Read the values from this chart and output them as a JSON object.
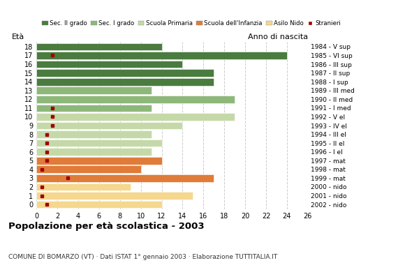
{
  "ages": [
    18,
    17,
    16,
    15,
    14,
    13,
    12,
    11,
    10,
    9,
    8,
    7,
    6,
    5,
    4,
    3,
    2,
    1,
    0
  ],
  "anno_nascita": [
    "1984 - V sup",
    "1985 - VI sup",
    "1986 - III sup",
    "1987 - II sup",
    "1988 - I sup",
    "1989 - III med",
    "1990 - II med",
    "1991 - I med",
    "1992 - V el",
    "1993 - IV el",
    "1994 - III el",
    "1995 - II el",
    "1996 - I el",
    "1997 - mat",
    "1998 - mat",
    "1999 - mat",
    "2000 - nido",
    "2001 - nido",
    "2002 - nido"
  ],
  "bar_values": [
    12,
    24,
    14,
    17,
    17,
    11,
    19,
    11,
    19,
    14,
    11,
    12,
    11,
    12,
    10,
    17,
    9,
    15,
    12
  ],
  "bar_colors": [
    "#4a7c3f",
    "#4a7c3f",
    "#4a7c3f",
    "#4a7c3f",
    "#4a7c3f",
    "#8db87a",
    "#8db87a",
    "#8db87a",
    "#c5d9a8",
    "#c5d9a8",
    "#c5d9a8",
    "#c5d9a8",
    "#c5d9a8",
    "#e07b39",
    "#e07b39",
    "#e07b39",
    "#f5d78e",
    "#f5d78e",
    "#f5d78e"
  ],
  "stranieri_data": [
    [
      17,
      1.5
    ],
    [
      11,
      1.5
    ],
    [
      10,
      1.5
    ],
    [
      9,
      1.5
    ],
    [
      8,
      1.0
    ],
    [
      7,
      1.0
    ],
    [
      6,
      1.0
    ],
    [
      5,
      1.0
    ],
    [
      4,
      0.5
    ],
    [
      3,
      3.0
    ],
    [
      2,
      0.5
    ],
    [
      1,
      0.5
    ],
    [
      0,
      1.0
    ]
  ],
  "legend_labels": [
    "Sec. II grado",
    "Sec. I grado",
    "Scuola Primaria",
    "Scuola dell'Infanzia",
    "Asilo Nido",
    "Stranieri"
  ],
  "legend_colors": [
    "#4a7c3f",
    "#8db87a",
    "#c5d9a8",
    "#e07b39",
    "#f5d78e",
    "#a00000"
  ],
  "title": "Popolazione per età scolastica - 2003",
  "subtitle": "COMUNE DI BOMARZO (VT) · Dati ISTAT 1° gennaio 2003 · Elaborazione TUTTITALIA.IT",
  "ylabel_left": "Età",
  "ylabel_right": "Anno di nascita",
  "xlim": [
    0,
    26
  ],
  "xticks": [
    0,
    2,
    4,
    6,
    8,
    10,
    12,
    14,
    16,
    18,
    20,
    22,
    24,
    26
  ],
  "background_color": "#ffffff",
  "grid_color": "#cccccc"
}
